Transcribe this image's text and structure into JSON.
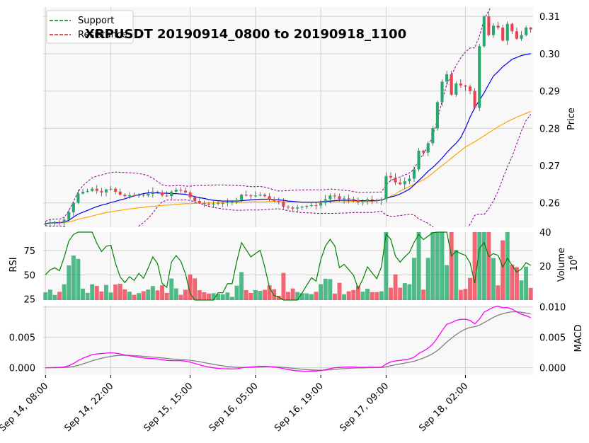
{
  "chart_data": {
    "type": "candlestick",
    "title": "XRPUSDT 20190914_0800 to 20190918_1100",
    "legend": {
      "placement": "top-left",
      "entries": [
        {
          "label": "Support",
          "color": "#008000",
          "style": "dashed"
        },
        {
          "label": "Resistance",
          "color": "#d62728",
          "style": "dashed"
        }
      ]
    },
    "colors": {
      "up": "#26a96c",
      "down": "#f04050",
      "ma_fast": "#0000ee",
      "ma_slow": "#ffa500",
      "bollinger": "#8b008b",
      "rsi": "#008000",
      "macd": "#ff00ff",
      "signal": "#808080",
      "background": "#f8f8f8",
      "grid": "#d0d0d0"
    },
    "x_ticks": [
      "Sep 14, 08:00",
      "Sep 14, 22:00",
      "Sep 15, 15:00",
      "Sep 16, 05:00",
      "Sep 16, 19:00",
      "Sep 17, 09:00",
      "Sep 18, 02:00"
    ],
    "x_tick_index": [
      0,
      14,
      31,
      45,
      59,
      73,
      90
    ],
    "price_panel": {
      "ylabel": "Price",
      "ylim": [
        0.2535,
        0.3125
      ],
      "yticks": [
        "0.26",
        "0.27",
        "0.28",
        "0.29",
        "0.30",
        "0.31"
      ],
      "ytick_values": [
        0.26,
        0.27,
        0.28,
        0.29,
        0.3,
        0.31
      ],
      "close": [
        0.2545,
        0.2548,
        0.2549,
        0.2548,
        0.2555,
        0.2575,
        0.26,
        0.2625,
        0.263,
        0.2632,
        0.2638,
        0.2632,
        0.2628,
        0.2636,
        0.2638,
        0.263,
        0.2622,
        0.2618,
        0.2621,
        0.2619,
        0.2622,
        0.262,
        0.2624,
        0.263,
        0.2628,
        0.262,
        0.2618,
        0.263,
        0.2635,
        0.2633,
        0.2628,
        0.2615,
        0.2605,
        0.26,
        0.2598,
        0.2596,
        0.2598,
        0.26,
        0.26,
        0.2602,
        0.2602,
        0.2608,
        0.2622,
        0.262,
        0.2618,
        0.262,
        0.2622,
        0.2618,
        0.261,
        0.2605,
        0.2604,
        0.259,
        0.2588,
        0.2585,
        0.2588,
        0.259,
        0.2592,
        0.2594,
        0.2593,
        0.26,
        0.261,
        0.262,
        0.2618,
        0.261,
        0.2612,
        0.261,
        0.2608,
        0.2602,
        0.2605,
        0.261,
        0.2608,
        0.2606,
        0.261,
        0.2672,
        0.2668,
        0.2655,
        0.265,
        0.2658,
        0.2665,
        0.269,
        0.274,
        0.2735,
        0.276,
        0.28,
        0.287,
        0.2925,
        0.2945,
        0.289,
        0.292,
        0.2915,
        0.2912,
        0.29,
        0.2855,
        0.302,
        0.31,
        0.305,
        0.3075,
        0.307,
        0.3035,
        0.308,
        0.306,
        0.304,
        0.305,
        0.307,
        0.3065
      ],
      "ma_fast": [
        0.2545,
        0.2546,
        0.2547,
        0.2547,
        0.2549,
        0.2553,
        0.2562,
        0.257,
        0.2575,
        0.258,
        0.2585,
        0.259,
        0.2594,
        0.2597,
        0.2601,
        0.2604,
        0.2608,
        0.2611,
        0.2615,
        0.2619,
        0.2622,
        0.2625,
        0.2627,
        0.2627,
        0.2627,
        0.2626,
        0.2626,
        0.2625,
        0.2625,
        0.2624,
        0.2623,
        0.262,
        0.2617,
        0.2614,
        0.2612,
        0.2609,
        0.2607,
        0.2606,
        0.2605,
        0.2605,
        0.2605,
        0.2605,
        0.2606,
        0.2607,
        0.2608,
        0.2609,
        0.261,
        0.261,
        0.261,
        0.2609,
        0.2608,
        0.2607,
        0.2605,
        0.2604,
        0.2603,
        0.2602,
        0.2602,
        0.2602,
        0.2602,
        0.2603,
        0.2604,
        0.2605,
        0.2606,
        0.2607,
        0.2607,
        0.2607,
        0.2607,
        0.2606,
        0.2606,
        0.2606,
        0.2606,
        0.2606,
        0.2608,
        0.2612,
        0.2616,
        0.2619,
        0.2624,
        0.263,
        0.2637,
        0.2648,
        0.266,
        0.2672,
        0.2685,
        0.2695,
        0.2707,
        0.272,
        0.2735,
        0.2748,
        0.276,
        0.2775,
        0.28,
        0.283,
        0.2855,
        0.2875,
        0.2895,
        0.2918,
        0.294,
        0.2952,
        0.2965,
        0.2975,
        0.2985,
        0.299,
        0.2995,
        0.2998,
        0.3
      ],
      "ma_slow": [
        0.2545,
        0.2546,
        0.2546,
        0.2546,
        0.2547,
        0.2549,
        0.2552,
        0.2556,
        0.2559,
        0.2562,
        0.2565,
        0.2568,
        0.2571,
        0.2574,
        0.2576,
        0.2578,
        0.258,
        0.2582,
        0.2584,
        0.2585,
        0.2587,
        0.2588,
        0.259,
        0.2591,
        0.2592,
        0.2593,
        0.2594,
        0.2595,
        0.2596,
        0.2597,
        0.2598,
        0.2598,
        0.2599,
        0.2599,
        0.2599,
        0.26,
        0.26,
        0.26,
        0.26,
        0.2601,
        0.2601,
        0.2601,
        0.2602,
        0.2602,
        0.2603,
        0.2603,
        0.2603,
        0.2603,
        0.2604,
        0.2604,
        0.2604,
        0.2603,
        0.2603,
        0.2603,
        0.2603,
        0.2602,
        0.2602,
        0.2602,
        0.2602,
        0.2602,
        0.2603,
        0.2603,
        0.2603,
        0.2603,
        0.2603,
        0.2604,
        0.2604,
        0.2604,
        0.2604,
        0.2604,
        0.2605,
        0.2606,
        0.2608,
        0.2612,
        0.2618,
        0.2624,
        0.2632,
        0.2638,
        0.2644,
        0.265,
        0.2656,
        0.2662,
        0.267,
        0.268,
        0.269,
        0.27,
        0.271,
        0.272,
        0.273,
        0.274,
        0.275,
        0.2757,
        0.2764,
        0.2772,
        0.278,
        0.2788,
        0.2796,
        0.2804,
        0.2811,
        0.2818,
        0.2824,
        0.283,
        0.2835,
        0.284,
        0.2845
      ]
    },
    "rsi_panel": {
      "ylabel": "RSI",
      "ylim": [
        24,
        94
      ],
      "yticks": [
        "25",
        "50",
        "75"
      ],
      "ytick_values": [
        25,
        50,
        75
      ]
    },
    "volume_panel": {
      "ylabel": "Volume",
      "exponent_label": "10",
      "exponent_power": "6",
      "ylim": [
        0,
        40
      ],
      "yticks": [
        "20",
        "40"
      ],
      "ytick_values": [
        20,
        40
      ]
    },
    "macd_panel": {
      "ylabel": "MACD",
      "ylim": [
        -0.0012,
        0.0102
      ],
      "yticks_left": [
        "0.000",
        "0.005"
      ],
      "yticks_right": [
        "0.000",
        "0.005",
        "0.010"
      ],
      "ytick_values_left": [
        0,
        0.005
      ],
      "ytick_values_right": [
        0,
        0.005,
        0.01
      ]
    }
  }
}
